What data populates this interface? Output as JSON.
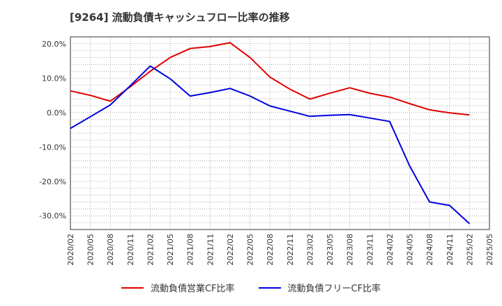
{
  "title": "[9264]  流動負債キャッシュフロー比率の推移",
  "chart_data": {
    "type": "line",
    "x": [
      "2020/02",
      "2020/05",
      "2020/08",
      "2020/11",
      "2021/02",
      "2021/05",
      "2021/08",
      "2021/11",
      "2022/02",
      "2022/05",
      "2022/08",
      "2022/11",
      "2023/02",
      "2023/05",
      "2023/08",
      "2023/11",
      "2024/02",
      "2024/05",
      "2024/08",
      "2024/11",
      "2025/02",
      "2025/05"
    ],
    "series": [
      {
        "name": "流動負債営業CF比率",
        "color": "#e00000",
        "values": [
          6.3,
          5.0,
          3.3,
          7.5,
          12.0,
          16.0,
          18.6,
          19.2,
          20.3,
          16.0,
          10.3,
          6.8,
          3.9,
          5.6,
          7.2,
          5.6,
          4.5,
          2.6,
          0.8,
          -0.1,
          -0.7,
          null
        ]
      },
      {
        "name": "流動負債フリーCF比率",
        "color": "#0000e0",
        "values": [
          -4.6,
          -1.2,
          2.2,
          7.8,
          13.5,
          9.8,
          4.8,
          5.8,
          7.0,
          4.8,
          1.9,
          0.4,
          -1.1,
          -0.8,
          -0.6,
          -1.6,
          -2.6,
          -15.5,
          -26.0,
          -27.0,
          -32.3,
          null
        ]
      }
    ],
    "xlabel": "",
    "ylabel": "",
    "ylim": [
      -34,
      22
    ],
    "yticks": [
      20,
      10,
      0,
      -10,
      -20,
      -30
    ],
    "ytick_labels": [
      "20.0%",
      "10.0%",
      "0.0%",
      "-10.0%",
      "-20.0%",
      "-30.0%"
    ],
    "grid": true,
    "legend_position": "bottom"
  }
}
